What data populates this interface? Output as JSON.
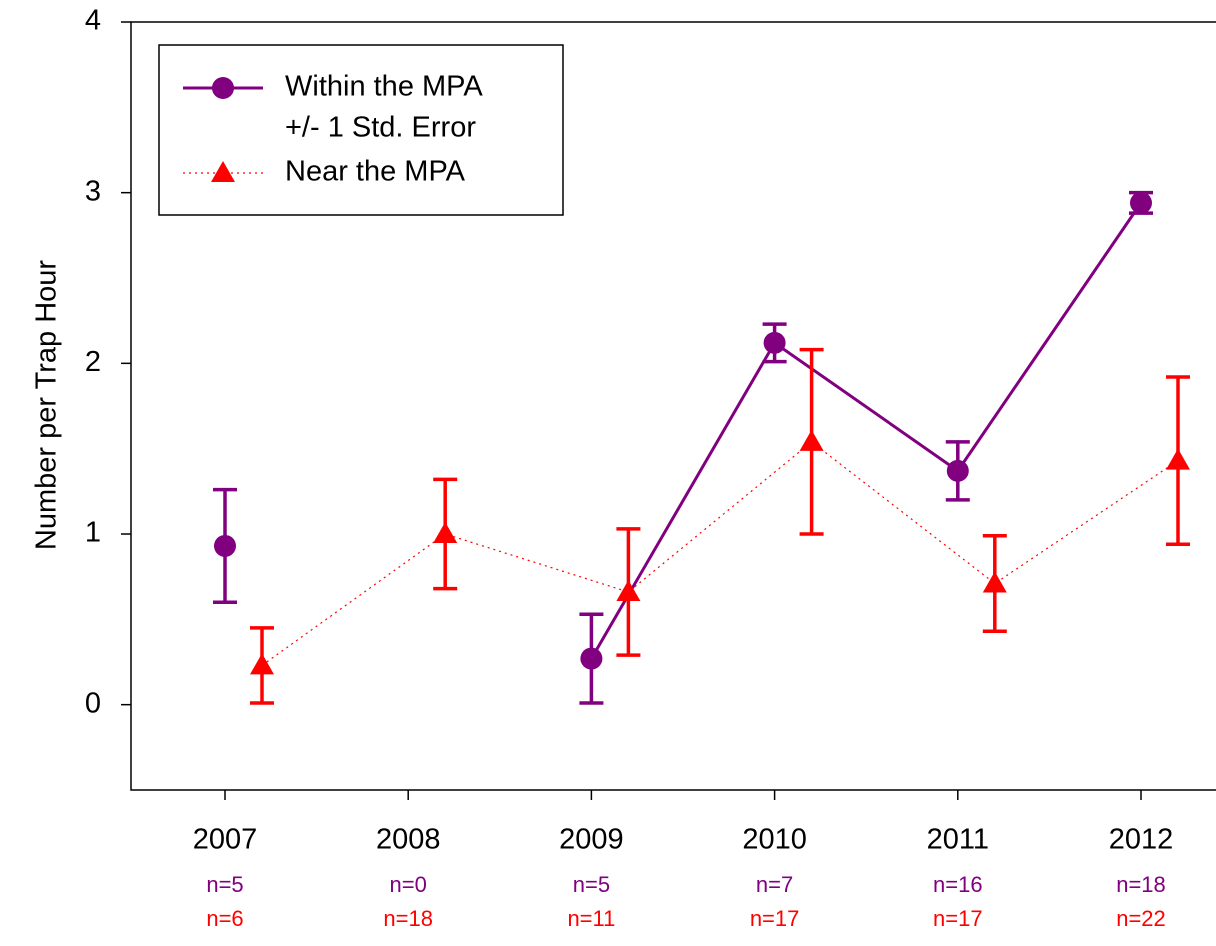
{
  "chart_data": {
    "type": "line",
    "y_label": "Number per Trap Hour",
    "categories": [
      "2007",
      "2008",
      "2009",
      "2010",
      "2011",
      "2012"
    ],
    "ylim": [
      -0.5,
      4
    ],
    "yticks": [
      0,
      1,
      2,
      3,
      4
    ],
    "legend_note": "+/- 1 Std. Error",
    "series": [
      {
        "name": "Within the MPA",
        "color": "#800080",
        "line_style": "solid",
        "marker": "circle",
        "values": [
          0.93,
          null,
          0.27,
          2.12,
          1.37,
          2.94
        ],
        "errors": [
          0.33,
          null,
          0.26,
          0.11,
          0.17,
          0.06
        ],
        "n_labels": [
          "n=5",
          "n=0",
          "n=5",
          "n=7",
          "n=16",
          "n=18"
        ]
      },
      {
        "name": "Near the MPA",
        "color": "#ff0000",
        "line_style": "dotted",
        "marker": "triangle",
        "values": [
          0.23,
          1.0,
          0.66,
          1.54,
          0.71,
          1.43
        ],
        "errors": [
          0.22,
          0.32,
          0.37,
          0.54,
          0.28,
          0.49
        ],
        "n_labels": [
          "n=6",
          "n=18",
          "n=11",
          "n=17",
          "n=17",
          "n=22"
        ]
      }
    ]
  }
}
